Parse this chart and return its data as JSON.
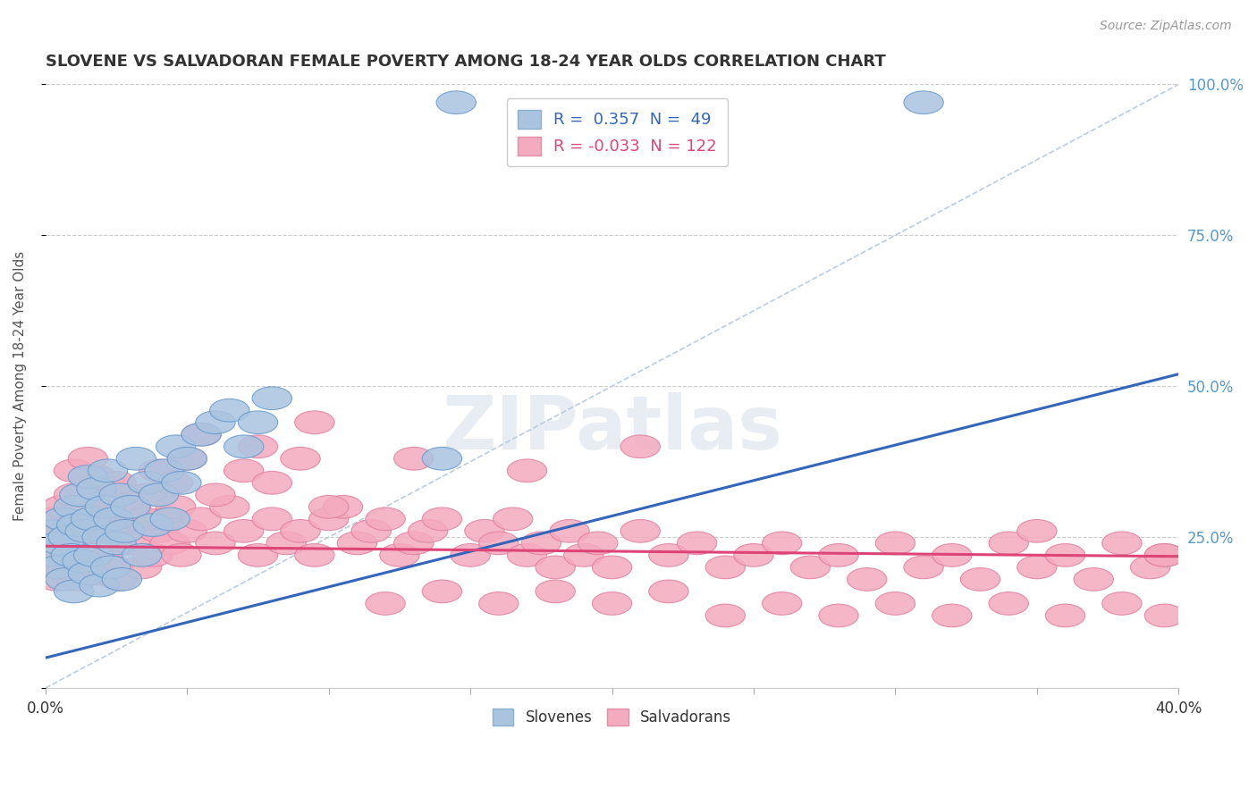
{
  "title": "SLOVENE VS SALVADORAN FEMALE POVERTY AMONG 18-24 YEAR OLDS CORRELATION CHART",
  "source": "Source: ZipAtlas.com",
  "ylabel": "Female Poverty Among 18-24 Year Olds",
  "xlim": [
    0.0,
    0.4
  ],
  "ylim": [
    0.0,
    1.0
  ],
  "slovene_R": 0.357,
  "slovene_N": 49,
  "salvadoran_R": -0.033,
  "salvadoran_N": 122,
  "slovene_color": "#aac4e0",
  "salvadoran_color": "#f4aabf",
  "slovene_edge_color": "#6699cc",
  "salvadoran_edge_color": "#e080a0",
  "slovene_line_color": "#3366bb",
  "salvadoran_line_color": "#dd4477",
  "ref_line_color": "#bbccdd",
  "background_color": "#ffffff",
  "watermark": "ZIPatlas",
  "sl_line_x0": 0.0,
  "sl_line_y0": 0.05,
  "sl_line_x1": 0.4,
  "sl_line_y1": 0.52,
  "sa_line_x0": 0.0,
  "sa_line_y0": 0.235,
  "sa_line_x1": 0.4,
  "sa_line_y1": 0.218,
  "slovene_x": [
    0.002,
    0.003,
    0.004,
    0.005,
    0.006,
    0.007,
    0.008,
    0.009,
    0.01,
    0.01,
    0.011,
    0.012,
    0.013,
    0.014,
    0.015,
    0.015,
    0.016,
    0.017,
    0.018,
    0.019,
    0.02,
    0.021,
    0.022,
    0.023,
    0.024,
    0.025,
    0.026,
    0.027,
    0.028,
    0.03,
    0.032,
    0.034,
    0.036,
    0.038,
    0.04,
    0.042,
    0.044,
    0.046,
    0.048,
    0.05,
    0.055,
    0.06,
    0.065,
    0.07,
    0.075,
    0.08,
    0.14,
    0.145,
    0.31
  ],
  "slovene_y": [
    0.22,
    0.26,
    0.2,
    0.24,
    0.28,
    0.18,
    0.25,
    0.22,
    0.3,
    0.16,
    0.27,
    0.32,
    0.21,
    0.26,
    0.35,
    0.19,
    0.28,
    0.22,
    0.33,
    0.17,
    0.25,
    0.3,
    0.36,
    0.2,
    0.28,
    0.24,
    0.32,
    0.18,
    0.26,
    0.3,
    0.38,
    0.22,
    0.34,
    0.27,
    0.32,
    0.36,
    0.28,
    0.4,
    0.34,
    0.38,
    0.42,
    0.44,
    0.46,
    0.4,
    0.44,
    0.48,
    0.38,
    0.97,
    0.97
  ],
  "salvadoran_x": [
    0.002,
    0.003,
    0.004,
    0.005,
    0.006,
    0.007,
    0.008,
    0.009,
    0.01,
    0.011,
    0.012,
    0.013,
    0.014,
    0.015,
    0.016,
    0.017,
    0.018,
    0.019,
    0.02,
    0.021,
    0.022,
    0.023,
    0.024,
    0.025,
    0.026,
    0.027,
    0.028,
    0.03,
    0.032,
    0.034,
    0.036,
    0.038,
    0.04,
    0.042,
    0.044,
    0.046,
    0.048,
    0.05,
    0.055,
    0.06,
    0.065,
    0.07,
    0.075,
    0.08,
    0.085,
    0.09,
    0.095,
    0.1,
    0.105,
    0.11,
    0.115,
    0.12,
    0.125,
    0.13,
    0.135,
    0.14,
    0.15,
    0.155,
    0.16,
    0.165,
    0.17,
    0.175,
    0.18,
    0.185,
    0.19,
    0.195,
    0.2,
    0.21,
    0.22,
    0.23,
    0.24,
    0.25,
    0.26,
    0.27,
    0.28,
    0.29,
    0.3,
    0.31,
    0.32,
    0.33,
    0.34,
    0.35,
    0.36,
    0.37,
    0.38,
    0.39,
    0.395,
    0.01,
    0.015,
    0.02,
    0.025,
    0.03,
    0.035,
    0.04,
    0.045,
    0.05,
    0.06,
    0.07,
    0.08,
    0.09,
    0.1,
    0.12,
    0.14,
    0.16,
    0.18,
    0.2,
    0.22,
    0.24,
    0.26,
    0.28,
    0.3,
    0.32,
    0.34,
    0.36,
    0.38,
    0.395,
    0.055,
    0.075,
    0.095,
    0.13,
    0.17,
    0.21,
    0.35,
    0.395
  ],
  "salvadoran_y": [
    0.22,
    0.28,
    0.18,
    0.25,
    0.3,
    0.2,
    0.26,
    0.22,
    0.32,
    0.18,
    0.27,
    0.24,
    0.3,
    0.2,
    0.28,
    0.22,
    0.35,
    0.19,
    0.26,
    0.3,
    0.23,
    0.28,
    0.2,
    0.33,
    0.18,
    0.26,
    0.3,
    0.24,
    0.28,
    0.2,
    0.32,
    0.22,
    0.26,
    0.28,
    0.24,
    0.3,
    0.22,
    0.26,
    0.28,
    0.24,
    0.3,
    0.26,
    0.22,
    0.28,
    0.24,
    0.26,
    0.22,
    0.28,
    0.3,
    0.24,
    0.26,
    0.28,
    0.22,
    0.24,
    0.26,
    0.28,
    0.22,
    0.26,
    0.24,
    0.28,
    0.22,
    0.24,
    0.2,
    0.26,
    0.22,
    0.24,
    0.2,
    0.26,
    0.22,
    0.24,
    0.2,
    0.22,
    0.24,
    0.2,
    0.22,
    0.18,
    0.24,
    0.2,
    0.22,
    0.18,
    0.24,
    0.2,
    0.22,
    0.18,
    0.24,
    0.2,
    0.22,
    0.36,
    0.38,
    0.32,
    0.34,
    0.3,
    0.28,
    0.36,
    0.34,
    0.38,
    0.32,
    0.36,
    0.34,
    0.38,
    0.3,
    0.14,
    0.16,
    0.14,
    0.16,
    0.14,
    0.16,
    0.12,
    0.14,
    0.12,
    0.14,
    0.12,
    0.14,
    0.12,
    0.14,
    0.12,
    0.42,
    0.4,
    0.44,
    0.38,
    0.36,
    0.4,
    0.26,
    0.22
  ]
}
